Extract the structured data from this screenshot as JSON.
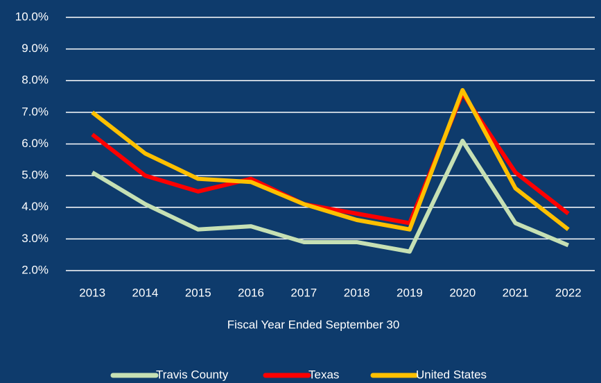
{
  "chart_data": {
    "type": "line",
    "x_label": "Fiscal Year Ended September 30",
    "categories": [
      "2013",
      "2014",
      "2015",
      "2016",
      "2017",
      "2018",
      "2019",
      "2020",
      "2021",
      "2022"
    ],
    "series": [
      {
        "name": "Travis County",
        "color": "#c6e0b4",
        "values": [
          5.1,
          4.1,
          3.3,
          3.4,
          2.9,
          2.9,
          2.6,
          6.1,
          3.5,
          2.8
        ]
      },
      {
        "name": "Texas",
        "color": "#ff0000",
        "values": [
          6.3,
          5.0,
          4.5,
          4.9,
          4.1,
          3.8,
          3.5,
          7.6,
          5.1,
          3.8
        ]
      },
      {
        "name": "United States",
        "color": "#ffc000",
        "values": [
          7.0,
          5.7,
          4.9,
          4.8,
          4.1,
          3.6,
          3.3,
          7.7,
          4.6,
          3.3
        ]
      }
    ],
    "ylim": [
      2,
      10
    ],
    "yticks": [
      {
        "value": 2,
        "label": "2.0%"
      },
      {
        "value": 3,
        "label": "3.0%"
      },
      {
        "value": 4,
        "label": "4.0%"
      },
      {
        "value": 5,
        "label": "5.0%"
      },
      {
        "value": 6,
        "label": "6.0%"
      },
      {
        "value": 7,
        "label": "7.0%"
      },
      {
        "value": 8,
        "label": "8.0%"
      },
      {
        "value": 9,
        "label": "9.0%"
      },
      {
        "value": 10,
        "label": "10.0%"
      }
    ],
    "grid": true,
    "legend": "bottom"
  }
}
